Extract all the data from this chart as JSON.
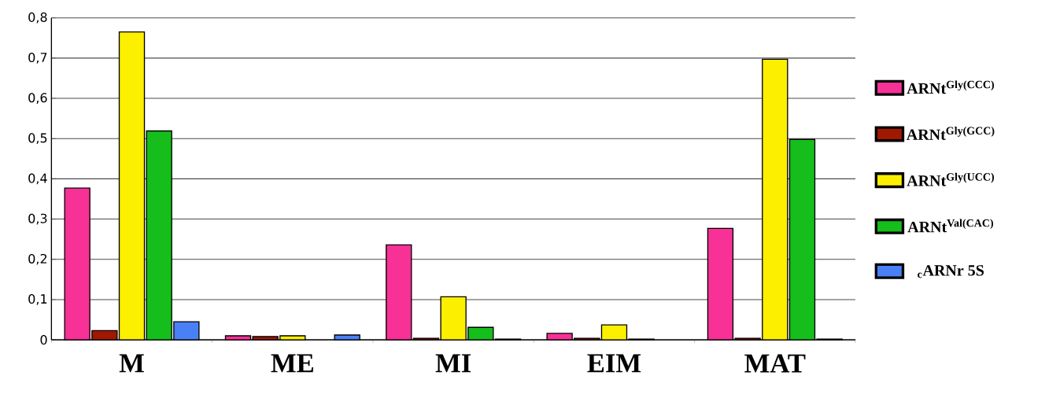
{
  "chart_data": {
    "type": "bar",
    "categories": [
      "M",
      "ME",
      "MI",
      "EIM",
      "MAT"
    ],
    "series": [
      {
        "name": "ARNt$^{Gly(CCC)}$",
        "color": "#f73196",
        "values": [
          0.377,
          0.01,
          0.236,
          0.016,
          0.277
        ]
      },
      {
        "name": "ARNt$^{Gly(GCC)}$",
        "color": "#a01800",
        "values": [
          0.023,
          0.008,
          0.004,
          0.004,
          0.004
        ]
      },
      {
        "name": "ARNt$^{Gly(UCC)}$",
        "color": "#fcef00",
        "values": [
          0.765,
          0.01,
          0.107,
          0.037,
          0.697
        ]
      },
      {
        "name": "ARNt$^{Val(CAC)}$",
        "color": "#15be1b",
        "values": [
          0.519,
          null,
          0.031,
          0.002,
          0.498
        ]
      },
      {
        "name": "$_{c}$ARNr 5S",
        "color": "#4a80f5",
        "values": [
          0.045,
          0.012,
          0.002,
          null,
          0.002
        ]
      }
    ],
    "ylim": [
      0,
      0.8
    ],
    "yticks": [
      {
        "value": 0,
        "label": "0"
      },
      {
        "value": 0.1,
        "label": "0,1"
      },
      {
        "value": 0.2,
        "label": "0,2"
      },
      {
        "value": 0.3,
        "label": "0,3"
      },
      {
        "value": 0.4,
        "label": "0,4"
      },
      {
        "value": 0.5,
        "label": "0,5"
      },
      {
        "value": 0.6,
        "label": "0,6"
      },
      {
        "value": 0.7,
        "label": "0,7"
      },
      {
        "value": 0.8,
        "label": "0,8"
      }
    ],
    "grid": "y",
    "legend": "right"
  }
}
